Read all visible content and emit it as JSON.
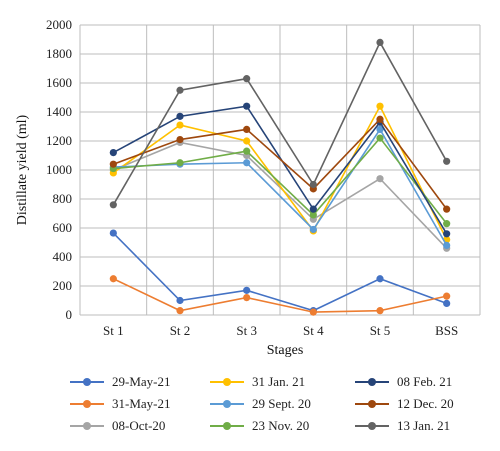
{
  "chart_data": {
    "type": "line",
    "title": "",
    "xlabel": "Stages",
    "ylabel": "Distillate yield (ml)",
    "categories": [
      "St 1",
      "St 2",
      "St 3",
      "St 4",
      "St 5",
      "BSS"
    ],
    "ylim": [
      0,
      2000
    ],
    "yticks": [
      0,
      200,
      400,
      600,
      800,
      1000,
      1200,
      1400,
      1600,
      1800,
      2000
    ],
    "grid": true,
    "legend_position": "bottom",
    "series": [
      {
        "name": "29-May-21",
        "color": "#4472c4",
        "values": [
          565,
          100,
          170,
          30,
          250,
          80
        ]
      },
      {
        "name": "31-May-21",
        "color": "#ed7d31",
        "values": [
          250,
          30,
          120,
          20,
          30,
          130
        ]
      },
      {
        "name": "08-Oct-20",
        "color": "#a5a5a5",
        "values": [
          1000,
          1190,
          1100,
          660,
          940,
          460
        ]
      },
      {
        "name": "31 Jan. 21",
        "color": "#ffc000",
        "values": [
          980,
          1310,
          1200,
          580,
          1440,
          520
        ]
      },
      {
        "name": "29 Sept. 20",
        "color": "#5b9bd5",
        "values": [
          1020,
          1040,
          1050,
          590,
          1280,
          480
        ]
      },
      {
        "name": "23 Nov. 20",
        "color": "#70ad47",
        "values": [
          1010,
          1050,
          1130,
          690,
          1220,
          630
        ]
      },
      {
        "name": "08 Feb. 21",
        "color": "#264478",
        "values": [
          1120,
          1370,
          1440,
          730,
          1330,
          560
        ]
      },
      {
        "name": "12 Dec. 20",
        "color": "#9e480e",
        "values": [
          1040,
          1210,
          1280,
          870,
          1350,
          730
        ]
      },
      {
        "name": "13 Jan. 21",
        "color": "#636363",
        "values": [
          760,
          1550,
          1630,
          900,
          1880,
          1060
        ]
      }
    ]
  }
}
